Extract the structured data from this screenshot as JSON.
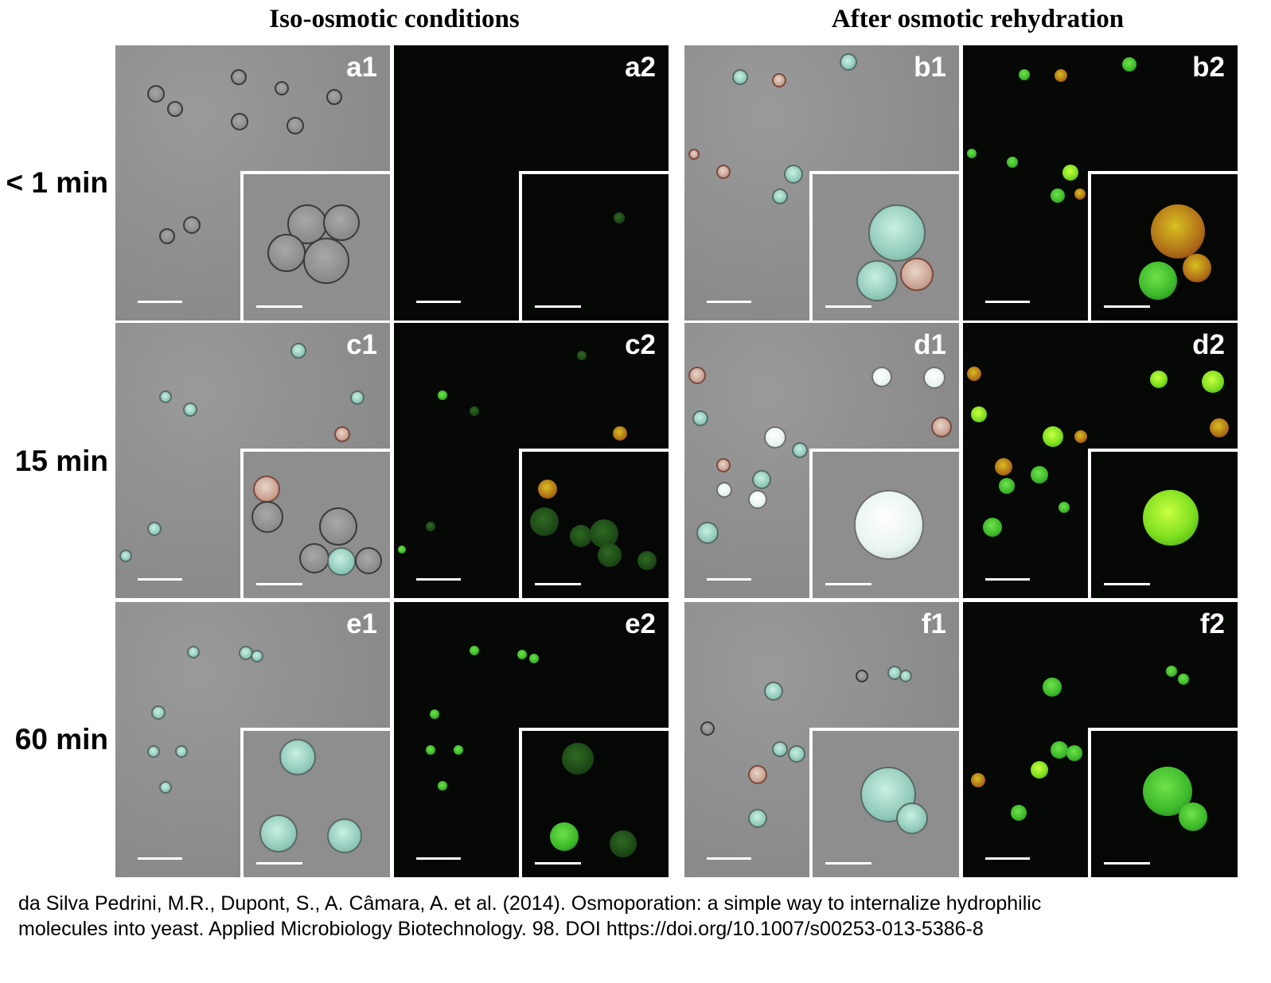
{
  "column_headers": {
    "left": "Iso-osmotic conditions",
    "right": "After osmotic rehydration"
  },
  "row_labels": [
    "< 1 min",
    "15 min",
    "60 min"
  ],
  "panels": [
    {
      "label": "a1",
      "type": "brightfield"
    },
    {
      "label": "a2",
      "type": "fluorescence"
    },
    {
      "label": "b1",
      "type": "brightfield"
    },
    {
      "label": "b2",
      "type": "fluorescence"
    },
    {
      "label": "c1",
      "type": "brightfield"
    },
    {
      "label": "c2",
      "type": "fluorescence"
    },
    {
      "label": "d1",
      "type": "brightfield"
    },
    {
      "label": "d2",
      "type": "fluorescence"
    },
    {
      "label": "e1",
      "type": "brightfield"
    },
    {
      "label": "e2",
      "type": "fluorescence"
    },
    {
      "label": "f1",
      "type": "brightfield"
    },
    {
      "label": "f2",
      "type": "fluorescence"
    }
  ],
  "citation": {
    "line1": "da Silva Pedrini, M.R., Dupont, S., A. Câmara, A. et al. (2014). Osmoporation: a simple way to internalize hydrophilic",
    "line2": "molecules into yeast. Applied Microbiology Biotechnology. 98. DOI https://doi.org/10.1007/s00253-013-5386-8"
  },
  "colors": {
    "brightfield_bg": "#8c8c8c",
    "fluorescence_bg": "#050805",
    "fluorescent_green": "#4ccc2a",
    "label_white": "#ffffff"
  }
}
